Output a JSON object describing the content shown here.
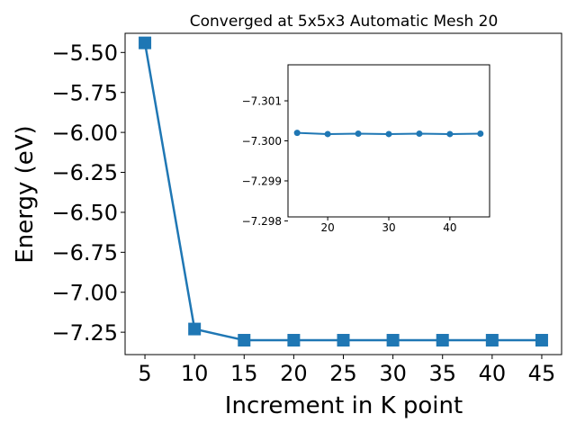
{
  "chart_data": [
    {
      "type": "line",
      "title": "Converged at 5x5x3 Automatic Mesh 20",
      "xlabel": "Increment in K point",
      "ylabel": "Energy (eV)",
      "x": [
        5,
        10,
        15,
        20,
        25,
        30,
        35,
        40,
        45
      ],
      "series": [
        {
          "values": [
            -5.44,
            -7.23,
            -7.3,
            -7.3,
            -7.3,
            -7.3,
            -7.3,
            -7.3,
            -7.3
          ]
        }
      ],
      "marker": "square",
      "color": "#1f77b4",
      "xlim": [
        3,
        47
      ],
      "ylim": [
        -7.39,
        -5.38
      ],
      "xticks": [
        5,
        10,
        15,
        20,
        25,
        30,
        35,
        40,
        45
      ],
      "xtick_labels": [
        "5",
        "10",
        "15",
        "20",
        "25",
        "30",
        "35",
        "40",
        "45"
      ],
      "yticks": [
        -7.25,
        -7.0,
        -6.75,
        -6.5,
        -6.25,
        -6.0,
        -5.75,
        -5.5
      ],
      "ytick_labels": [
        "−7.25",
        "−7.00",
        "−6.75",
        "−6.50",
        "−6.25",
        "−6.00",
        "−5.75",
        "−5.50"
      ],
      "grid": false
    },
    {
      "type": "line",
      "role": "inset",
      "x": [
        15,
        20,
        25,
        30,
        35,
        40,
        45
      ],
      "series": [
        {
          "values": [
            -7.3002,
            -7.30017,
            -7.30018,
            -7.30017,
            -7.30018,
            -7.30017,
            -7.30018
          ]
        }
      ],
      "marker": "circle",
      "color": "#1f77b4",
      "y_inverted": true,
      "xlim": [
        13.5,
        46.5
      ],
      "ylim": [
        -7.3019,
        -7.2981
      ],
      "xticks": [
        20,
        30,
        40
      ],
      "xtick_labels": [
        "20",
        "30",
        "40"
      ],
      "yticks": [
        -7.301,
        -7.3,
        -7.299,
        -7.298
      ],
      "ytick_labels": [
        "−7.301",
        "−7.300",
        "−7.299",
        "−7.298"
      ],
      "grid": false
    }
  ]
}
